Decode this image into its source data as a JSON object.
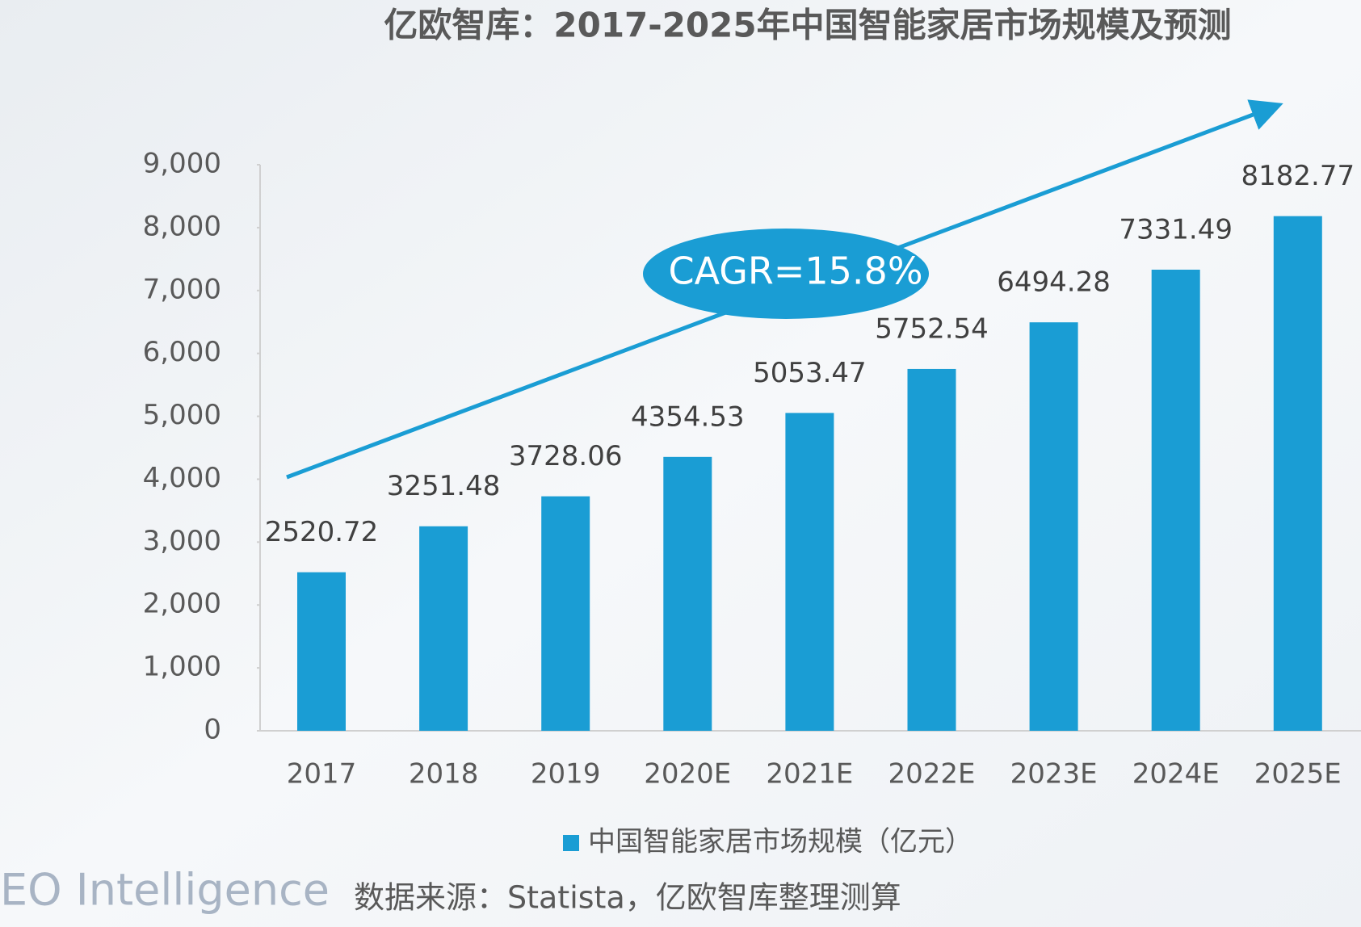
{
  "chart_data": {
    "type": "bar",
    "title": "亿欧智库：2017-2025年中国智能家居市场规模及预测",
    "categories": [
      "2017",
      "2018",
      "2019",
      "2020E",
      "2021E",
      "2022E",
      "2023E",
      "2024E",
      "2025E"
    ],
    "series": [
      {
        "name": "中国智能家居市场规模（亿元）",
        "color": "#1a9dd4",
        "values": [
          2520.72,
          3251.48,
          3728.06,
          4354.53,
          5053.47,
          5752.54,
          6494.28,
          7331.49,
          8182.77
        ]
      }
    ],
    "ylim": [
      0,
      9000
    ],
    "yticks": [
      0,
      {
        "value": 1000,
        "label": "1,000"
      },
      {
        "value": 2000,
        "label": "2,000"
      },
      {
        "value": 3000,
        "label": "3,000"
      },
      {
        "value": 4000,
        "label": "4,000"
      },
      {
        "value": 5000,
        "label": "5,000"
      },
      {
        "value": 6000,
        "label": "6,000"
      },
      {
        "value": 7000,
        "label": "7,000"
      },
      {
        "value": 8000,
        "label": "8,000"
      },
      {
        "value": 9000,
        "label": "9,000"
      }
    ],
    "annotation": "CAGR=15.8%",
    "source": "数据来源：Statista，亿欧智库整理测算",
    "watermark": "EO Intelligence"
  }
}
